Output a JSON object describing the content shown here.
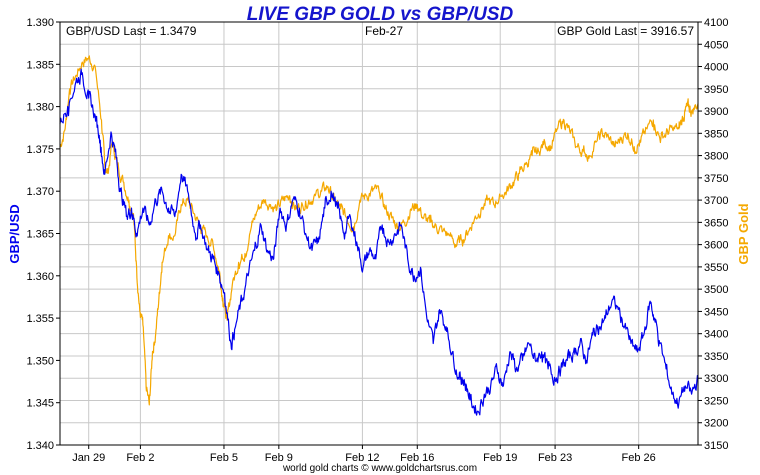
{
  "chart_data": {
    "type": "line",
    "title": "LIVE GBP GOLD vs GBP/USD",
    "header": {
      "left": "GBP/USD Last = 1.3479",
      "center": "Feb-27",
      "right": "GBP Gold Last = 3916.57"
    },
    "footer": "world gold charts © www.goldchartsrus.com",
    "left_axis": {
      "label": "GBP/USD",
      "ylim": [
        1.34,
        1.39
      ],
      "ticks": [
        "1.340",
        "1.345",
        "1.350",
        "1.355",
        "1.360",
        "1.365",
        "1.370",
        "1.375",
        "1.380",
        "1.385",
        "1.390"
      ]
    },
    "right_axis": {
      "label": "GBP Gold",
      "ylim": [
        3150,
        4100
      ],
      "ticks": [
        "3150",
        "3200",
        "3250",
        "3300",
        "3350",
        "3400",
        "3450",
        "3500",
        "3550",
        "3600",
        "3650",
        "3700",
        "3750",
        "3800",
        "3850",
        "3900",
        "3950",
        "4000",
        "4050",
        "4100"
      ]
    },
    "x_axis": {
      "categories": [
        "Jan 29",
        "Feb 2",
        "Feb 5",
        "Feb 9",
        "Feb 12",
        "Feb 16",
        "Feb 19",
        "Feb 23",
        "Feb 26"
      ],
      "tick_positions": [
        0.045,
        0.126,
        0.257,
        0.343,
        0.474,
        0.56,
        0.69,
        0.776,
        0.907
      ]
    },
    "grid": true,
    "colors": {
      "gbpusd": "#0000ee",
      "gold": "#f5a800",
      "title": "#1515cc",
      "grid": "#c8c8c8"
    },
    "series": [
      {
        "name": "GBP/USD",
        "axis": "left",
        "x": [
          0.0,
          0.012,
          0.025,
          0.035,
          0.045,
          0.055,
          0.063,
          0.07,
          0.08,
          0.088,
          0.095,
          0.105,
          0.112,
          0.12,
          0.13,
          0.14,
          0.15,
          0.16,
          0.17,
          0.18,
          0.19,
          0.2,
          0.212,
          0.22,
          0.232,
          0.24,
          0.25,
          0.258,
          0.268,
          0.275,
          0.285,
          0.295,
          0.305,
          0.315,
          0.325,
          0.335,
          0.345,
          0.355,
          0.365,
          0.375,
          0.385,
          0.395,
          0.405,
          0.415,
          0.425,
          0.435,
          0.445,
          0.455,
          0.465,
          0.475,
          0.485,
          0.495,
          0.505,
          0.515,
          0.525,
          0.535,
          0.545,
          0.555,
          0.565,
          0.575,
          0.585,
          0.595,
          0.605,
          0.615,
          0.625,
          0.63,
          0.637,
          0.645,
          0.655,
          0.665,
          0.675,
          0.685,
          0.695,
          0.705,
          0.715,
          0.725,
          0.735,
          0.745,
          0.755,
          0.765,
          0.775,
          0.785,
          0.795,
          0.805,
          0.815,
          0.825,
          0.835,
          0.845,
          0.855,
          0.865,
          0.875,
          0.885,
          0.895,
          0.905,
          0.915,
          0.925,
          0.932,
          0.94,
          0.95,
          0.96,
          0.97,
          0.98,
          0.99,
          1.0
        ],
        "values": [
          1.378,
          1.38,
          1.383,
          1.384,
          1.381,
          1.379,
          1.376,
          1.372,
          1.377,
          1.374,
          1.37,
          1.367,
          1.368,
          1.365,
          1.368,
          1.366,
          1.369,
          1.37,
          1.368,
          1.367,
          1.372,
          1.37,
          1.365,
          1.366,
          1.363,
          1.362,
          1.36,
          1.358,
          1.352,
          1.354,
          1.357,
          1.36,
          1.363,
          1.366,
          1.363,
          1.362,
          1.368,
          1.366,
          1.369,
          1.368,
          1.365,
          1.363,
          1.364,
          1.368,
          1.37,
          1.368,
          1.365,
          1.367,
          1.364,
          1.361,
          1.363,
          1.362,
          1.366,
          1.364,
          1.365,
          1.366,
          1.362,
          1.36,
          1.361,
          1.355,
          1.352,
          1.356,
          1.354,
          1.351,
          1.348,
          1.348,
          1.347,
          1.345,
          1.344,
          1.346,
          1.347,
          1.349,
          1.347,
          1.351,
          1.349,
          1.35,
          1.352,
          1.35,
          1.351,
          1.349,
          1.348,
          1.349,
          1.35,
          1.351,
          1.352,
          1.35,
          1.353,
          1.354,
          1.355,
          1.357,
          1.356,
          1.354,
          1.352,
          1.351,
          1.353,
          1.357,
          1.355,
          1.352,
          1.349,
          1.346,
          1.345,
          1.347,
          1.346,
          1.3479
        ]
      },
      {
        "name": "GBP Gold",
        "axis": "right",
        "x": [
          0.0,
          0.008,
          0.015,
          0.025,
          0.035,
          0.045,
          0.055,
          0.065,
          0.07,
          0.075,
          0.082,
          0.09,
          0.1,
          0.108,
          0.115,
          0.12,
          0.125,
          0.13,
          0.135,
          0.14,
          0.145,
          0.15,
          0.155,
          0.16,
          0.17,
          0.18,
          0.19,
          0.2,
          0.21,
          0.22,
          0.23,
          0.24,
          0.25,
          0.255,
          0.262,
          0.27,
          0.28,
          0.29,
          0.3,
          0.31,
          0.32,
          0.33,
          0.34,
          0.35,
          0.36,
          0.37,
          0.38,
          0.39,
          0.4,
          0.41,
          0.42,
          0.43,
          0.44,
          0.45,
          0.46,
          0.47,
          0.48,
          0.49,
          0.5,
          0.51,
          0.52,
          0.53,
          0.54,
          0.55,
          0.56,
          0.57,
          0.58,
          0.59,
          0.6,
          0.61,
          0.62,
          0.63,
          0.64,
          0.65,
          0.66,
          0.67,
          0.68,
          0.69,
          0.7,
          0.71,
          0.72,
          0.73,
          0.74,
          0.75,
          0.76,
          0.77,
          0.78,
          0.79,
          0.8,
          0.81,
          0.82,
          0.83,
          0.84,
          0.85,
          0.86,
          0.87,
          0.88,
          0.89,
          0.9,
          0.91,
          0.92,
          0.93,
          0.94,
          0.95,
          0.96,
          0.97,
          0.975,
          0.98,
          0.985,
          0.99,
          1.0
        ],
        "values": [
          3820,
          3860,
          3950,
          3980,
          4010,
          4020,
          4000,
          3880,
          3780,
          3760,
          3830,
          3780,
          3740,
          3700,
          3670,
          3550,
          3450,
          3420,
          3280,
          3240,
          3360,
          3400,
          3480,
          3560,
          3620,
          3620,
          3690,
          3700,
          3670,
          3640,
          3620,
          3600,
          3540,
          3480,
          3430,
          3510,
          3560,
          3580,
          3640,
          3680,
          3700,
          3690,
          3680,
          3700,
          3710,
          3680,
          3690,
          3700,
          3710,
          3720,
          3730,
          3700,
          3680,
          3660,
          3640,
          3700,
          3710,
          3720,
          3720,
          3680,
          3660,
          3640,
          3650,
          3680,
          3690,
          3660,
          3650,
          3640,
          3630,
          3620,
          3600,
          3610,
          3630,
          3660,
          3680,
          3700,
          3690,
          3710,
          3720,
          3740,
          3760,
          3780,
          3800,
          3810,
          3830,
          3820,
          3860,
          3880,
          3850,
          3820,
          3810,
          3800,
          3830,
          3850,
          3840,
          3820,
          3840,
          3850,
          3820,
          3830,
          3860,
          3880,
          3840,
          3850,
          3860,
          3860,
          3880,
          3900,
          3910,
          3900,
          3916.57
        ]
      }
    ]
  }
}
